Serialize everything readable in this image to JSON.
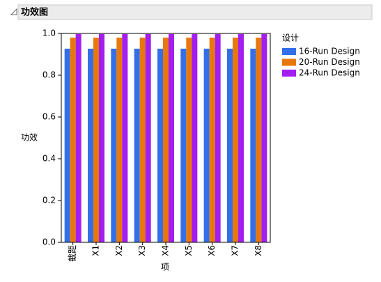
{
  "chart_data": {
    "type": "bar",
    "title": "功效图",
    "categories": [
      "截距",
      "X1",
      "X2",
      "X3",
      "X4",
      "X5",
      "X6",
      "X7",
      "X8"
    ],
    "series": [
      {
        "name": "16-Run Design",
        "color": "#3370e8",
        "values": [
          0.927,
          0.927,
          0.927,
          0.927,
          0.927,
          0.927,
          0.927,
          0.927,
          0.927
        ]
      },
      {
        "name": "20-Run Design",
        "color": "#e8780c",
        "values": [
          0.98,
          0.98,
          0.98,
          0.98,
          0.98,
          0.98,
          0.98,
          0.98,
          0.98
        ]
      },
      {
        "name": "24-Run Design",
        "color": "#a31ef0",
        "values": [
          0.997,
          0.997,
          0.997,
          0.997,
          0.997,
          0.997,
          0.997,
          0.997,
          0.997
        ]
      }
    ],
    "ylim": [
      0,
      1
    ],
    "yticks": [
      {
        "value": 0,
        "label": "0.0"
      },
      {
        "value": 0.2,
        "label": "0.2"
      },
      {
        "value": 0.4,
        "label": "0.4"
      },
      {
        "value": 0.6,
        "label": "0.6"
      },
      {
        "value": 0.8,
        "label": "0.8"
      },
      {
        "value": 1,
        "label": "1.0"
      }
    ],
    "y_label": "功效",
    "x_label": "项",
    "legend_title": "设计",
    "grid": false
  }
}
